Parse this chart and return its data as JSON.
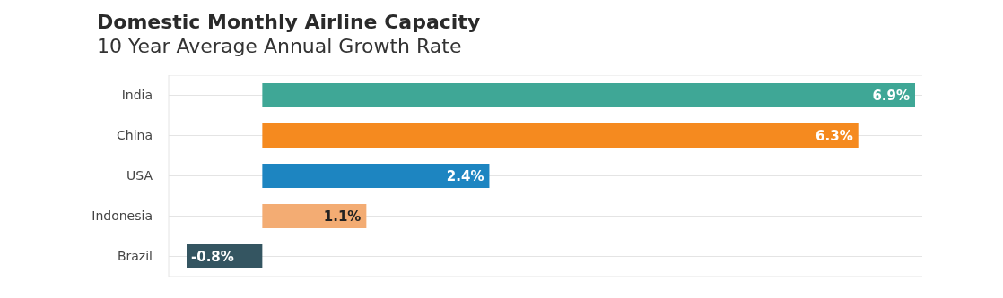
{
  "chart_data": {
    "type": "bar",
    "orientation": "horizontal",
    "title": "Domestic Monthly Airline Capacity",
    "subtitle": "10 Year Average Annual Growth Rate",
    "categories": [
      "India",
      "China",
      "USA",
      "Indonesia",
      "Brazil"
    ],
    "values": [
      6.9,
      6.3,
      2.4,
      1.1,
      -0.8
    ],
    "colors": [
      "#3fa796",
      "#f58a1f",
      "#1d85c1",
      "#f3ac73",
      "#345561"
    ],
    "value_labels": [
      "6.9%",
      "6.3%",
      "2.4%",
      "1.1%",
      "-0.8%"
    ],
    "tick_labels": "y",
    "grid": "y"
  }
}
